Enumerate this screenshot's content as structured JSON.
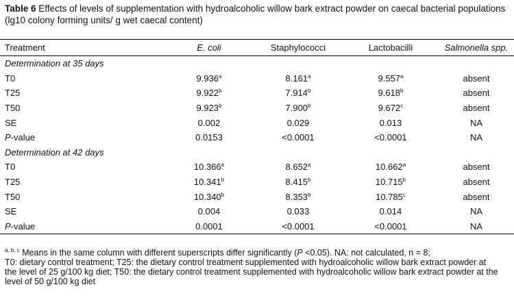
{
  "caption": {
    "label": "Table 6",
    "text": "Effects of levels of supplementation with hydroalcoholic willow bark extract powder on caecal bacterial populations (lg10 colony forming units/ g wet caecal content)"
  },
  "table": {
    "columns": [
      {
        "text": "Treatment",
        "italic": false
      },
      {
        "text": "E. coli",
        "italic": true
      },
      {
        "text": "Staphylococci",
        "italic": false
      },
      {
        "text": "Lactobacilli",
        "italic": false
      },
      {
        "text": "Salmonella spp.",
        "italic": true
      }
    ],
    "sections": [
      {
        "heading": "Determination at 35 days",
        "rows": [
          {
            "treatment": "T0",
            "cells": [
              {
                "value": "9.936",
                "sup": "a"
              },
              {
                "value": "8.161",
                "sup": "a"
              },
              {
                "value": "9.557",
                "sup": "a"
              },
              {
                "value": "absent"
              }
            ]
          },
          {
            "treatment": "T25",
            "cells": [
              {
                "value": "9.922",
                "sup": "b"
              },
              {
                "value": "7.914",
                "sup": "b"
              },
              {
                "value": "9.618",
                "sup": "b"
              },
              {
                "value": "absent"
              }
            ]
          },
          {
            "treatment": "T50",
            "cells": [
              {
                "value": "9.923",
                "sup": "b"
              },
              {
                "value": "7.900",
                "sup": "b"
              },
              {
                "value": "9.672",
                "sup": "c"
              },
              {
                "value": "absent"
              }
            ]
          },
          {
            "treatment": "SE",
            "cells": [
              {
                "value": "0.002"
              },
              {
                "value": "0.029"
              },
              {
                "value": "0.013"
              },
              {
                "value": "NA"
              }
            ]
          },
          {
            "treatment": {
              "italic": "P",
              "rest": "-value"
            },
            "cells": [
              {
                "value": "0.0153"
              },
              {
                "value": "<0.0001"
              },
              {
                "value": "<0.0001"
              },
              {
                "value": "NA"
              }
            ]
          }
        ]
      },
      {
        "heading": "Determination at 42 days",
        "rows": [
          {
            "treatment": "T0",
            "cells": [
              {
                "value": "10.366",
                "sup": "a"
              },
              {
                "value": "8.652",
                "sup": "a"
              },
              {
                "value": "10.662",
                "sup": "a"
              },
              {
                "value": "absent"
              }
            ]
          },
          {
            "treatment": "T25",
            "cells": [
              {
                "value": "10.341",
                "sup": "b"
              },
              {
                "value": "8.415",
                "sup": "b"
              },
              {
                "value": "10.715",
                "sup": "b"
              },
              {
                "value": "absent"
              }
            ]
          },
          {
            "treatment": "T50",
            "cells": [
              {
                "value": "10.340",
                "sup": "b"
              },
              {
                "value": "8.353",
                "sup": "b"
              },
              {
                "value": "10.785",
                "sup": "c"
              },
              {
                "value": "absent"
              }
            ]
          },
          {
            "treatment": "SE",
            "cells": [
              {
                "value": "0.004"
              },
              {
                "value": "0.033"
              },
              {
                "value": "0.014"
              },
              {
                "value": "NA"
              }
            ]
          },
          {
            "treatment": {
              "italic": "P",
              "rest": "-value"
            },
            "cells": [
              {
                "value": "0.0001"
              },
              {
                "value": "<0.0001"
              },
              {
                "value": "<0.0001"
              },
              {
                "value": "NA"
              }
            ]
          }
        ]
      }
    ]
  },
  "footnote": {
    "sup": "a, b, c",
    "text1": " Means in the same column with different superscripts differ significantly (",
    "italic": "P",
    "text2": " <0.05). NA: not calculated, n = 8;",
    "line2": "T0: dietary control treatment; T25: the dietary control treatment supplemented with hydroalcoholic willow bark extract powder at the level of 25 g/100 kg diet; T50: the dietary control treatment supplemented with hydroalcoholic willow bark extract powder at the level of 50 g/100 kg diet"
  }
}
